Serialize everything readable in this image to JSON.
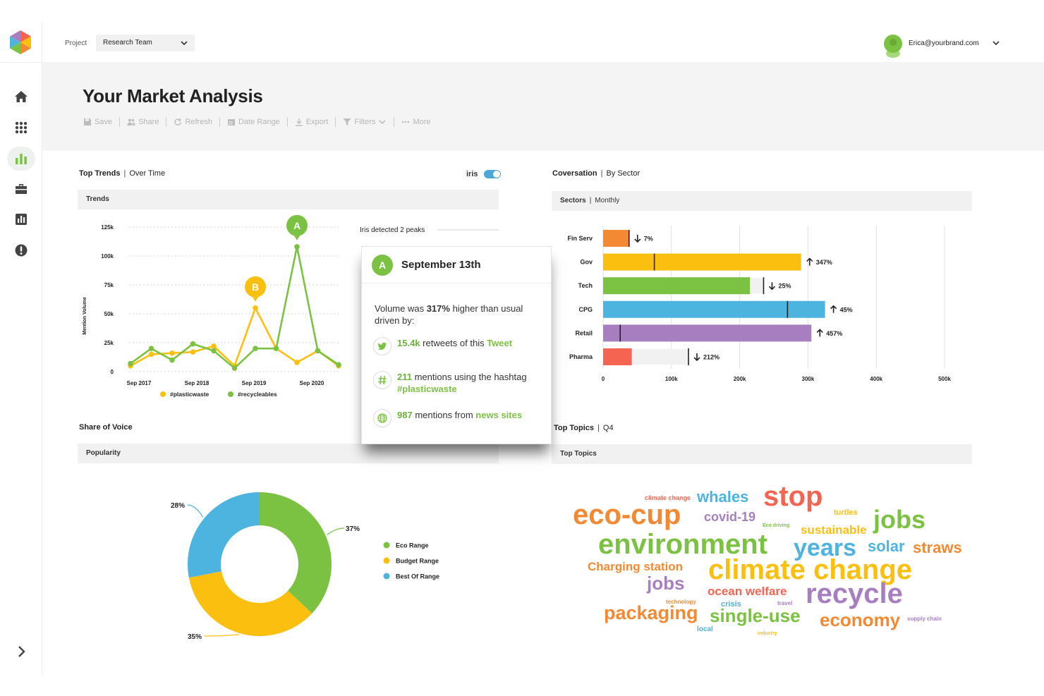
{
  "topbar": {
    "project_label": "Project",
    "project_value": "Research Team",
    "user_email": "Erica@yourbrand.com"
  },
  "header": {
    "title": "Your Market Analysis",
    "toolbar": [
      "Save",
      "Share",
      "Refresh",
      "Date Range",
      "Export",
      "Filters",
      "More"
    ]
  },
  "colors": {
    "green": "#7cc242",
    "yellow": "#fbbf0f",
    "blue": "#4db3df",
    "orange": "#f38a33",
    "purple": "#a77fc1",
    "red": "#f56450"
  },
  "trends": {
    "title": "Top Trends",
    "subtitle": "Over Time",
    "toggle_label": "iris",
    "band_label": "Trends",
    "peak_note": "Iris detected 2 peaks",
    "peak_a": "A",
    "peak_b": "B"
  },
  "conversation": {
    "title": "Coversation",
    "subtitle": "By Sector",
    "band_label": "Sectors",
    "band_sub": "Monthly"
  },
  "share_of_voice": {
    "title": "Share of Voice",
    "band_label": "Popularity"
  },
  "topics": {
    "title": "Top Topics",
    "subtitle": "Q4",
    "band_label": "Top Topics",
    "words": [
      {
        "text": "climate change",
        "color": "#f56450",
        "size": 9
      },
      {
        "text": "whales",
        "color": "#4db3df",
        "size": 22
      },
      {
        "text": "stop",
        "color": "#f56450",
        "size": 40
      },
      {
        "text": "turtles",
        "color": "#fbbf0f",
        "size": 11
      },
      {
        "text": "eco-cup",
        "color": "#f38a33",
        "size": 40
      },
      {
        "text": "covid-19",
        "color": "#a77fc1",
        "size": 18
      },
      {
        "text": "Eco driving",
        "color": "#7cc242",
        "size": 7
      },
      {
        "text": "sustainable",
        "color": "#fbbf0f",
        "size": 17
      },
      {
        "text": "jobs",
        "color": "#7cc242",
        "size": 36
      },
      {
        "text": "environment",
        "color": "#7cc242",
        "size": 40
      },
      {
        "text": "years",
        "color": "#4db3df",
        "size": 34
      },
      {
        "text": "solar",
        "color": "#4db3df",
        "size": 22
      },
      {
        "text": "straws",
        "color": "#f38a33",
        "size": 22
      },
      {
        "text": "Charging station",
        "color": "#f38a33",
        "size": 17
      },
      {
        "text": "climate change",
        "color": "#fbbf0f",
        "size": 40
      },
      {
        "text": "jobs",
        "color": "#a77fc1",
        "size": 26
      },
      {
        "text": "ocean welfare",
        "color": "#f56450",
        "size": 17
      },
      {
        "text": "technology",
        "color": "#f38a33",
        "size": 8
      },
      {
        "text": "crisis",
        "color": "#4db3df",
        "size": 11
      },
      {
        "text": "travel",
        "color": "#a77fc1",
        "size": 8
      },
      {
        "text": "recycle",
        "color": "#a77fc1",
        "size": 40
      },
      {
        "text": "packaging",
        "color": "#f38a33",
        "size": 27
      },
      {
        "text": "single-use",
        "color": "#7cc242",
        "size": 26
      },
      {
        "text": "economy",
        "color": "#f38a33",
        "size": 26
      },
      {
        "text": "supply chain",
        "color": "#a77fc1",
        "size": 8
      },
      {
        "text": "local",
        "color": "#4db3df",
        "size": 10
      },
      {
        "text": "industry",
        "color": "#fbbf0f",
        "size": 7
      }
    ]
  },
  "popup": {
    "badge": "A",
    "date": "September 13th",
    "lead_prefix": "Volume was ",
    "lead_value": "317%",
    "lead_suffix": " higher than usual driven by:",
    "row1_value": "15.4k",
    "row1_text": " retweets of this ",
    "row1_link": "Tweet",
    "row2_value": "211",
    "row2_text": " mentions using the hashtag ",
    "row2_link": "#plasticwaste",
    "row3_value": "987",
    "row3_text": " mentions from ",
    "row3_link": "news sites"
  },
  "chart_data": [
    {
      "type": "line",
      "ylabel": "Mention Volume",
      "y_ticks": [
        "0",
        "25k",
        "50k",
        "75k",
        "100k",
        "125k"
      ],
      "x_ticks": [
        "Sep 2017",
        "Sep 2018",
        "Sep 2019",
        "Sep 2020"
      ],
      "ylim": [
        0,
        125000
      ],
      "series": [
        {
          "name": "#plasticwaste",
          "color": "#fbbf0f",
          "values": [
            5000,
            15000,
            16000,
            17000,
            22000,
            5000,
            55000,
            20000,
            8000,
            18000,
            5000
          ]
        },
        {
          "name": "#recycleables",
          "color": "#7cc242",
          "values": [
            7000,
            20000,
            10000,
            24000,
            18000,
            3000,
            20000,
            20000,
            108000,
            18000,
            6000
          ]
        }
      ],
      "peaks": [
        {
          "label": "A",
          "series": "#recycleables",
          "index": 8
        },
        {
          "label": "B",
          "series": "#plasticwaste",
          "index": 6
        }
      ]
    },
    {
      "type": "bar",
      "orientation": "horizontal",
      "categories": [
        "Fin Serv",
        "Gov",
        "Tech",
        "CPG",
        "Retail",
        "Pharma"
      ],
      "values": [
        38000,
        290000,
        215000,
        325000,
        305000,
        42000
      ],
      "previous": [
        38000,
        75000,
        235000,
        270000,
        25000,
        125000
      ],
      "changes": [
        "7%",
        "347%",
        "25%",
        "45%",
        "457%",
        "212%"
      ],
      "directions": [
        "down",
        "up",
        "down",
        "up",
        "up",
        "down"
      ],
      "colors": [
        "#f38a33",
        "#fbbf0f",
        "#7cc242",
        "#4db3df",
        "#a77fc1",
        "#f56450"
      ],
      "x_ticks": [
        "0",
        "100k",
        "200k",
        "300k",
        "400k",
        "500k"
      ],
      "xlim": [
        0,
        500000
      ]
    },
    {
      "type": "pie",
      "style": "donut",
      "slices": [
        {
          "label": "Eco Range",
          "value": 37,
          "display": "37%",
          "color": "#7cc242"
        },
        {
          "label": "Budget Range",
          "value": 35,
          "display": "35%",
          "color": "#fbbf0f"
        },
        {
          "label": "Best Of Range",
          "value": 28,
          "display": "28%",
          "color": "#4db3df"
        }
      ]
    }
  ]
}
